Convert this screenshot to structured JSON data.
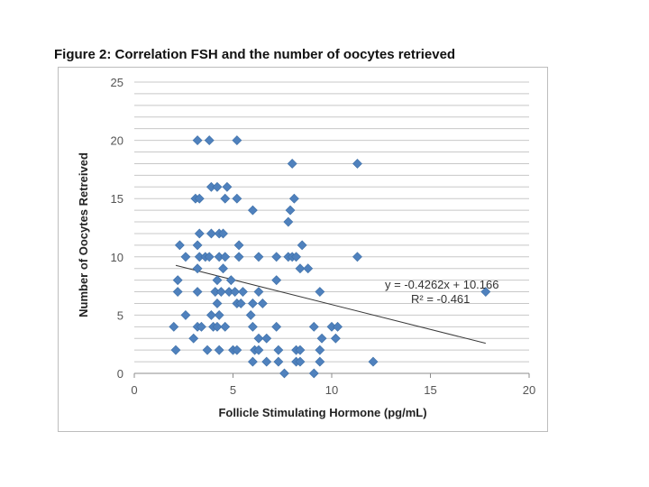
{
  "caption": "Figure 2: Correlation FSH and the number of oocytes retrieved",
  "chart_data": {
    "type": "scatter",
    "title": "",
    "xlabel": "Follicle Stimulating Hormone (pg/mL)",
    "ylabel": "Number of Oocytes Retreived",
    "xlim": [
      0,
      20
    ],
    "ylim": [
      0,
      25
    ],
    "x_ticks": [
      "0",
      "5",
      "10",
      "15",
      "20"
    ],
    "y_ticks": [
      "0",
      "5",
      "10",
      "15",
      "20",
      "25"
    ],
    "grid": true,
    "legend": "none",
    "marker_color": "#4f81bd",
    "trendline": {
      "slope": -0.4262,
      "intercept": 10.166,
      "x_range": [
        2.1,
        17.8
      ],
      "equation": "y = -0.4262x + 10.166",
      "r_squared": "R² = -0.461"
    },
    "points": [
      [
        3.2,
        20
      ],
      [
        3.8,
        20
      ],
      [
        5.2,
        20
      ],
      [
        11.3,
        18
      ],
      [
        8.0,
        18
      ],
      [
        3.9,
        16
      ],
      [
        4.2,
        16
      ],
      [
        4.7,
        16
      ],
      [
        3.1,
        15
      ],
      [
        3.3,
        15
      ],
      [
        4.6,
        15
      ],
      [
        5.2,
        15
      ],
      [
        8.1,
        15
      ],
      [
        6.0,
        14
      ],
      [
        7.9,
        14
      ],
      [
        7.8,
        13
      ],
      [
        3.3,
        12
      ],
      [
        3.9,
        12
      ],
      [
        4.3,
        12
      ],
      [
        4.5,
        12
      ],
      [
        2.3,
        11
      ],
      [
        3.2,
        11
      ],
      [
        5.3,
        11
      ],
      [
        8.5,
        11
      ],
      [
        2.6,
        10
      ],
      [
        3.3,
        10
      ],
      [
        3.6,
        10
      ],
      [
        3.8,
        10
      ],
      [
        4.3,
        10
      ],
      [
        4.6,
        10
      ],
      [
        5.3,
        10
      ],
      [
        6.3,
        10
      ],
      [
        7.2,
        10
      ],
      [
        7.8,
        10
      ],
      [
        8.0,
        10
      ],
      [
        8.2,
        10
      ],
      [
        11.3,
        10
      ],
      [
        3.2,
        9
      ],
      [
        4.5,
        9
      ],
      [
        8.4,
        9
      ],
      [
        8.8,
        9
      ],
      [
        2.2,
        8
      ],
      [
        4.2,
        8
      ],
      [
        4.9,
        8
      ],
      [
        7.2,
        8
      ],
      [
        2.2,
        7
      ],
      [
        3.2,
        7
      ],
      [
        4.1,
        7
      ],
      [
        4.4,
        7
      ],
      [
        4.8,
        7
      ],
      [
        5.1,
        7
      ],
      [
        5.5,
        7
      ],
      [
        6.3,
        7
      ],
      [
        9.4,
        7
      ],
      [
        17.8,
        7
      ],
      [
        4.2,
        6
      ],
      [
        5.2,
        6
      ],
      [
        5.4,
        6
      ],
      [
        6.0,
        6
      ],
      [
        6.5,
        6
      ],
      [
        2.6,
        5
      ],
      [
        3.9,
        5
      ],
      [
        4.3,
        5
      ],
      [
        5.9,
        5
      ],
      [
        2.0,
        4
      ],
      [
        3.2,
        4
      ],
      [
        3.4,
        4
      ],
      [
        4.0,
        4
      ],
      [
        4.2,
        4
      ],
      [
        4.6,
        4
      ],
      [
        6.0,
        4
      ],
      [
        7.2,
        4
      ],
      [
        9.1,
        4
      ],
      [
        10.0,
        4
      ],
      [
        10.3,
        4
      ],
      [
        3.0,
        3
      ],
      [
        6.3,
        3
      ],
      [
        6.7,
        3
      ],
      [
        9.5,
        3
      ],
      [
        10.2,
        3
      ],
      [
        2.1,
        2
      ],
      [
        3.7,
        2
      ],
      [
        4.3,
        2
      ],
      [
        5.0,
        2
      ],
      [
        5.2,
        2
      ],
      [
        6.1,
        2
      ],
      [
        6.3,
        2
      ],
      [
        7.3,
        2
      ],
      [
        8.2,
        2
      ],
      [
        8.4,
        2
      ],
      [
        9.4,
        2
      ],
      [
        6.0,
        1
      ],
      [
        6.7,
        1
      ],
      [
        7.3,
        1
      ],
      [
        8.2,
        1
      ],
      [
        8.4,
        1
      ],
      [
        9.4,
        1
      ],
      [
        12.1,
        1
      ],
      [
        7.6,
        0
      ],
      [
        9.1,
        0
      ]
    ]
  }
}
